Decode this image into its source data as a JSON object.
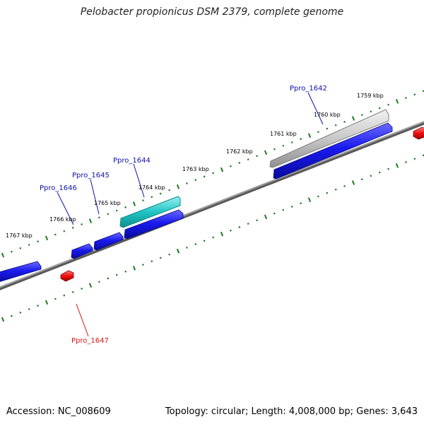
{
  "title": "Pelobacter propionicus DSM 2379, complete genome",
  "footer": {
    "accession": "Accession: NC_008609",
    "summary": "Topology: circular; Length: 4,008,000 bp; Genes: 3,643"
  },
  "colors": {
    "backbone": "#7a7a7a",
    "tick": "#1d7a1d",
    "forward_gene": "#1010dd",
    "reverse_gene": "#ee1111",
    "highlight_cyan": "#22c2c2",
    "highlight_gray": "#b8b8b8",
    "forward_label": "#1010aa",
    "reverse_label": "#dd1111"
  },
  "scale_labels": [
    "1759 kbp",
    "1760 kbp",
    "1761 kbp",
    "1762 kbp",
    "1763 kbp",
    "1764 kbp",
    "1765 kbp",
    "1766 kbp",
    "1767 kbp"
  ],
  "gene_labels": [
    {
      "text": "Ppro_1642",
      "strand": "forward"
    },
    {
      "text": "Ppro_1644",
      "strand": "forward"
    },
    {
      "text": "Ppro_1645",
      "strand": "forward"
    },
    {
      "text": "Ppro_1646",
      "strand": "forward"
    },
    {
      "text": "Ppro_1647",
      "strand": "reverse"
    }
  ]
}
